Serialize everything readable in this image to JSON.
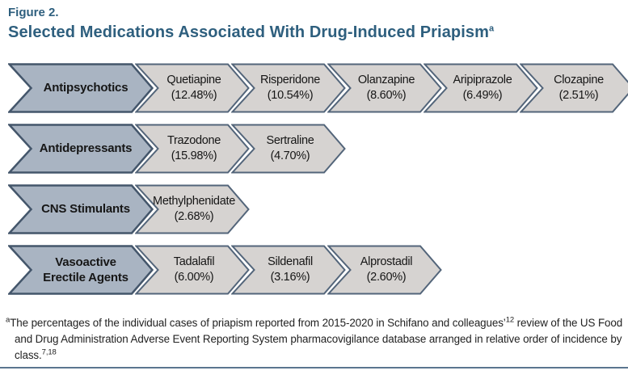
{
  "figure": {
    "label": "Figure 2.",
    "title": "Selected Medications Associated With Drug-Induced Priapism",
    "title_sup": "a"
  },
  "colors": {
    "title_text": "#2e5f7e",
    "category_fill": "#a9b4c2",
    "category_border": "#44566b",
    "medication_fill": "#d6d3d1",
    "medication_border": "#53657a",
    "arrow_text": "#161616",
    "bottom_rule": "#5b7690"
  },
  "rows": [
    {
      "category": "Antipsychotics",
      "medications": [
        {
          "name": "Quetiapine",
          "percent": "(12.48%)"
        },
        {
          "name": "Risperidone",
          "percent": "(10.54%)"
        },
        {
          "name": "Olanzapine",
          "percent": "(8.60%)"
        },
        {
          "name": "Aripiprazole",
          "percent": "(6.49%)"
        },
        {
          "name": "Clozapine",
          "percent": "(2.51%)"
        }
      ]
    },
    {
      "category": "Antidepressants",
      "medications": [
        {
          "name": "Trazodone",
          "percent": "(15.98%)"
        },
        {
          "name": "Sertraline",
          "percent": "(4.70%)"
        }
      ]
    },
    {
      "category": "CNS Stimulants",
      "medications": [
        {
          "name": "Methylphenidate",
          "percent": "(2.68%)"
        }
      ]
    },
    {
      "category": "Vasoactive Erectile Agents",
      "medications": [
        {
          "name": "Tadalafil",
          "percent": "(6.00%)"
        },
        {
          "name": "Sildenafil",
          "percent": "(3.16%)"
        },
        {
          "name": "Alprostadil",
          "percent": "(2.60%)"
        }
      ]
    }
  ],
  "footnote": {
    "marker": "a",
    "text1": "The percentages of the individual cases of priapism reported from 2015-2020 in Schifano and colleagues’",
    "sup1": "12",
    "text2": " review of the US Food and Drug Administration Adverse Event Reporting System pharmacovigilance database arranged in relative order of incidence by class.",
    "sup2": "7,18"
  }
}
